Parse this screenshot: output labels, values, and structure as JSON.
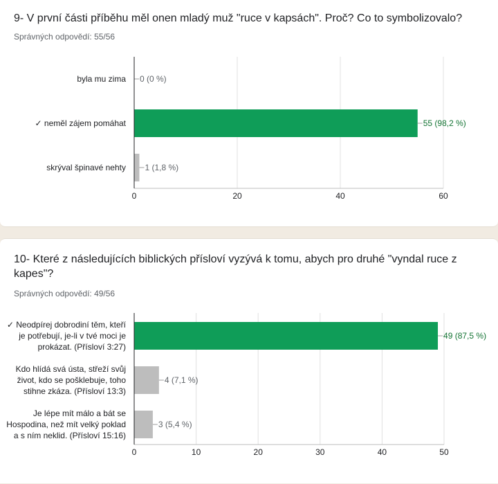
{
  "questions": [
    {
      "title": "9- V první části příběhu měl onen mladý muž \"ruce v kapsách\". Proč? Co to symbolizovalo?",
      "correct_text": "Správných odpovědí: 55/56"
    },
    {
      "title": "10- Které z následujících biblických přísloví vyzývá k tomu, abych pro druhé \"vyndal ruce z kapes\"?",
      "correct_text": "Správných odpovědí: 49/56"
    }
  ],
  "colors": {
    "correct_bar": "#0f9d58",
    "other_bar": "#bdbdbd",
    "correct_text": "#137333",
    "other_text": "#5f6368",
    "axis": "#202124",
    "grid": "#e0e0e0"
  },
  "chart_data": [
    {
      "type": "bar",
      "orientation": "horizontal",
      "categories": [
        [
          "byla mu zima"
        ],
        [
          "✓ neměl zájem pomáhat"
        ],
        [
          "skrýval špinavé nehty"
        ]
      ],
      "values": [
        0,
        55,
        1
      ],
      "value_labels": [
        "0 (0 %)",
        "55 (98,2 %)",
        "1 (1,8 %)"
      ],
      "correct": [
        false,
        true,
        false
      ],
      "xlim": [
        0,
        60
      ],
      "xticks": [
        0,
        20,
        40,
        60
      ]
    },
    {
      "type": "bar",
      "orientation": "horizontal",
      "categories": [
        [
          "✓ Neodpírej dobrodiní těm, kteří",
          "je potřebují, je-li v tvé moci je",
          "prokázat. (Přísloví 3:27)"
        ],
        [
          "Kdo hlídá svá ústa, střeží svůj",
          "život, kdo se pošklebuje, toho",
          "stihne zkáza. (Přísloví 13:3)"
        ],
        [
          "Je lépe mít málo a bát se",
          "Hospodina, než mít velký poklad",
          "a s ním neklid. (Přísloví 15:16)"
        ]
      ],
      "values": [
        49,
        4,
        3
      ],
      "value_labels": [
        "49 (87,5 %)",
        "4 (7,1 %)",
        "3 (5,4 %)"
      ],
      "correct": [
        true,
        false,
        false
      ],
      "xlim": [
        0,
        50
      ],
      "xticks": [
        0,
        10,
        20,
        30,
        40,
        50
      ]
    }
  ]
}
